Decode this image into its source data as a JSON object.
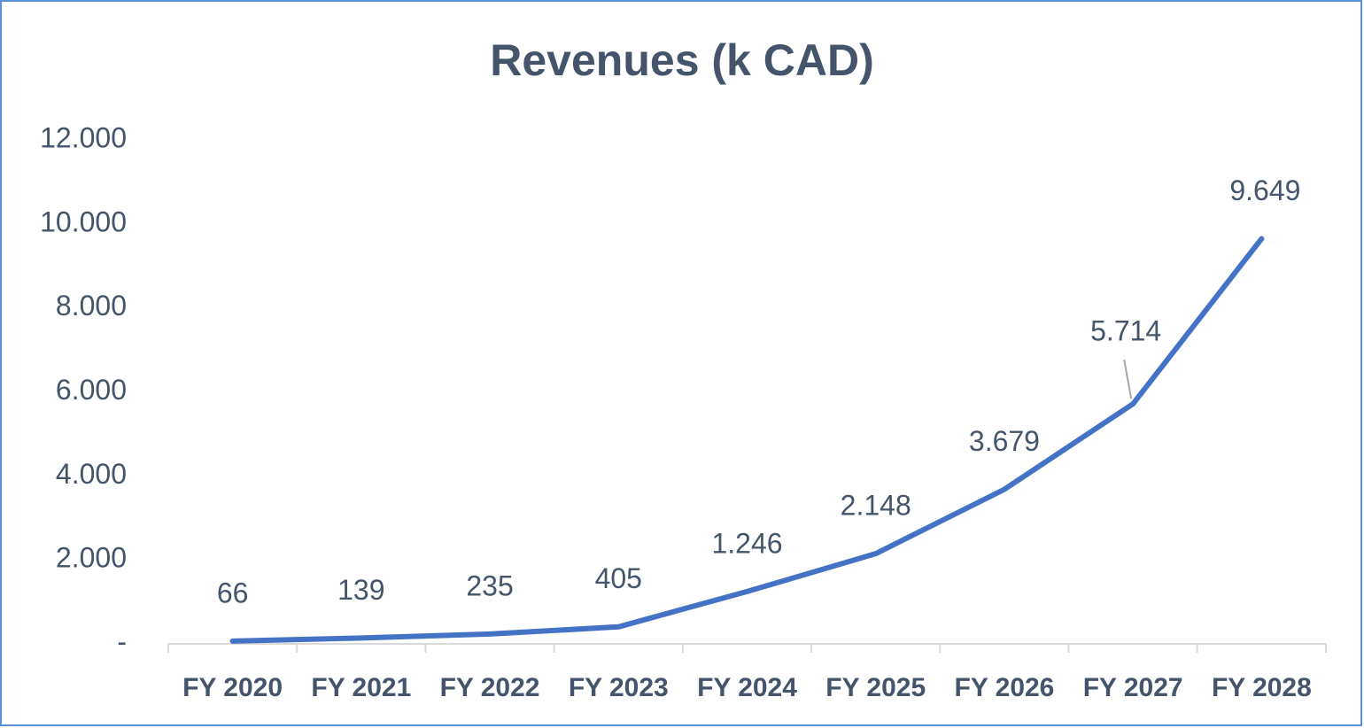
{
  "chart_data": {
    "type": "line",
    "title": "Revenues (k CAD)",
    "categories": [
      "FY 2020",
      "FY 2021",
      "FY 2022",
      "FY 2023",
      "FY 2024",
      "FY 2025",
      "FY 2026",
      "FY 2027",
      "FY 2028"
    ],
    "values": [
      66,
      139,
      235,
      405,
      1246,
      2148,
      3679,
      5714,
      9649
    ],
    "value_labels": [
      "66",
      "139",
      "235",
      "405",
      "1.246",
      "2.148",
      "3.679",
      "5.714",
      "9.649"
    ],
    "color": "#4472c4",
    "ylim": [
      0,
      12000
    ],
    "yticks": [
      {
        "value": 0,
        "label": "-"
      },
      {
        "value": 2000,
        "label": "2.000"
      },
      {
        "value": 4000,
        "label": "4.000"
      },
      {
        "value": 6000,
        "label": "6.000"
      },
      {
        "value": 8000,
        "label": "8.000"
      },
      {
        "value": 10000,
        "label": "10.000"
      },
      {
        "value": 12000,
        "label": "12.000"
      }
    ],
    "grid": false
  }
}
